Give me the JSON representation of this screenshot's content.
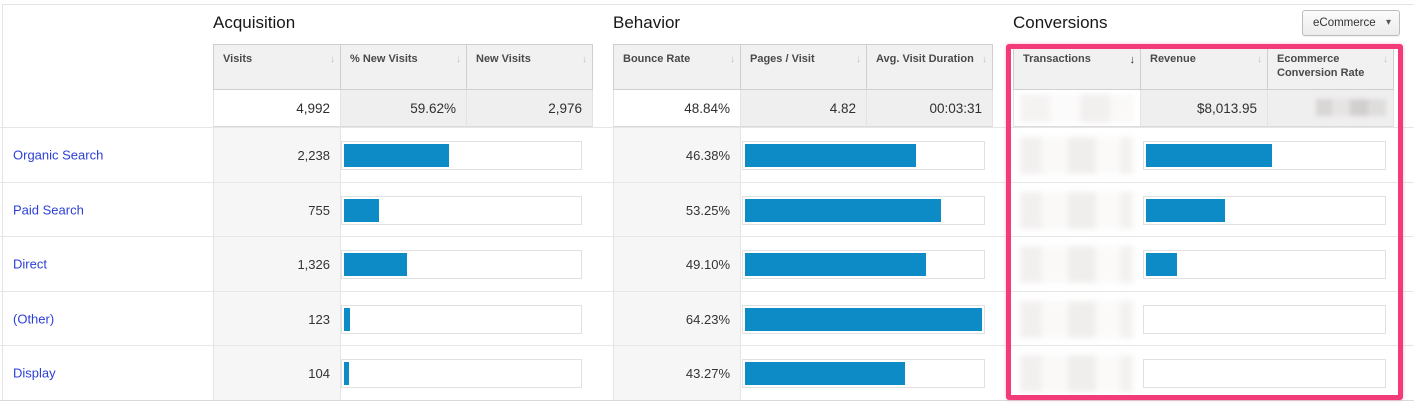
{
  "controls": {
    "ecommerce_button": {
      "label": "eCommerce"
    }
  },
  "icons": {
    "sort_desc_faint": "↓",
    "sort_desc_active": "↓",
    "caret_down": "▾"
  },
  "colors": {
    "bar_blue": "#0d8bc7",
    "highlight_pink": "#f23b78",
    "link_blue": "#2c3fd6",
    "header_bg": "#f1f1f1",
    "shaded_cell_bg": "#efefef"
  },
  "sections": {
    "acquisition": {
      "title": "Acquisition",
      "headers": [
        "Visits",
        "% New Visits",
        "New Visits"
      ],
      "summary": {
        "visits": "4,992",
        "pct_new_visits": "59.62%",
        "new_visits": "2,976"
      }
    },
    "behavior": {
      "title": "Behavior",
      "headers": [
        "Bounce Rate",
        "Pages / Visit",
        "Avg. Visit Duration"
      ],
      "summary": {
        "bounce_rate": "48.84%",
        "pages_per_visit": "4.82",
        "avg_visit_duration": "00:03:31"
      }
    },
    "conversions": {
      "title": "Conversions",
      "headers": [
        "Transactions",
        "Revenue",
        "Ecommerce Conversion Rate"
      ],
      "sorted_by": "Transactions",
      "sort_direction": "descending",
      "summary": {
        "transactions_blurred": true,
        "revenue": "$8,013.95",
        "ecommerce_conversion_rate_blurred": true
      }
    }
  },
  "rows": [
    {
      "label": "Organic Search",
      "visits": "2,238",
      "visits_bar_pct": 44.8,
      "bounce_rate": "46.38%",
      "bounce_bar_pct": 72.2,
      "transactions_blurred": true,
      "conversions_bar_pct": 53.1
    },
    {
      "label": "Paid Search",
      "visits": "755",
      "visits_bar_pct": 15.1,
      "bounce_rate": "53.25%",
      "bounce_bar_pct": 82.9,
      "transactions_blurred": true,
      "conversions_bar_pct": 33.3
    },
    {
      "label": "Direct",
      "visits": "1,326",
      "visits_bar_pct": 26.6,
      "bounce_rate": "49.10%",
      "bounce_bar_pct": 76.4,
      "transactions_blurred": true,
      "conversions_bar_pct": 13.2
    },
    {
      "label": "(Other)",
      "visits": "123",
      "visits_bar_pct": 2.5,
      "bounce_rate": "64.23%",
      "bounce_bar_pct": 100,
      "transactions_blurred": true,
      "conversions_bar_pct": 0
    },
    {
      "label": "Display",
      "visits": "104",
      "visits_bar_pct": 2.1,
      "bounce_rate": "43.27%",
      "bounce_bar_pct": 67.4,
      "transactions_blurred": true,
      "conversions_bar_pct": 0
    }
  ]
}
